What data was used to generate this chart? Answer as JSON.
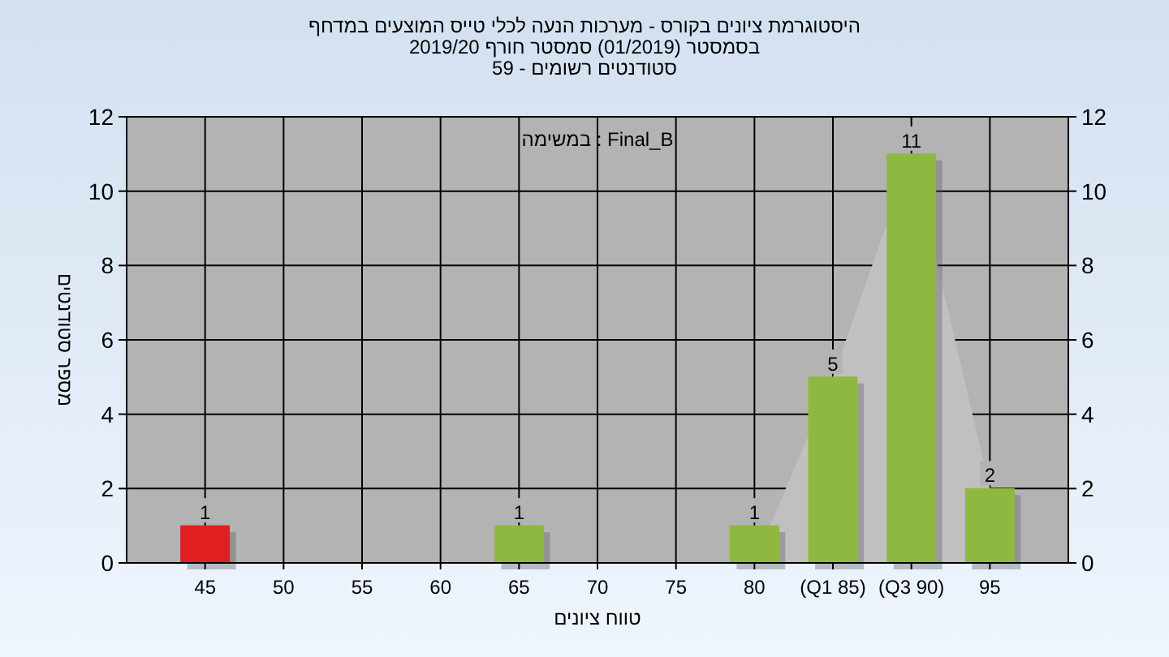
{
  "chart_data": {
    "type": "bar",
    "title": "היסטוגרמת ציונים בקורס - מערכות הנעה לכלי טייס המוצעים במדחף",
    "subtitle": "בסמסטר  (01/2019)  סמסטר חורף 2019/20\nסטודנטים רשומים - 59",
    "xlabel": "טווח ציונים",
    "ylabel": "מספר סטודנטים",
    "annotations": [
      "Final_B : במשימה"
    ],
    "categories": [
      "45",
      "50",
      "55",
      "60",
      "65",
      "70",
      "75",
      "80",
      "(Q1 85)",
      "(Q3 90)",
      "95"
    ],
    "series": [
      {
        "type": "area",
        "color": "#c0c0c0",
        "values": [
          null,
          null,
          null,
          null,
          null,
          null,
          null,
          0,
          5,
          11,
          2
        ]
      },
      {
        "type": "bar",
        "colors": [
          "#e02020",
          "#8fb840",
          "#8fb840",
          "#8fb840",
          "#8fb840",
          "#8fb840",
          "#8fb840",
          "#8fb840",
          "#8fb840",
          "#8fb840",
          "#8fb840"
        ],
        "values": [
          1,
          0,
          0,
          0,
          1,
          0,
          0,
          1,
          5,
          11,
          2
        ],
        "value_labels": [
          "1",
          null,
          null,
          null,
          "1",
          null,
          null,
          "1",
          "5",
          "11",
          "2"
        ]
      }
    ],
    "ylim": [
      0,
      12
    ],
    "yticks": [
      0,
      2,
      4,
      6,
      8,
      10,
      12
    ],
    "y2lim": [
      0,
      12
    ],
    "y2ticks": [
      0,
      2,
      4,
      6,
      8,
      10,
      12
    ],
    "grid": true
  }
}
